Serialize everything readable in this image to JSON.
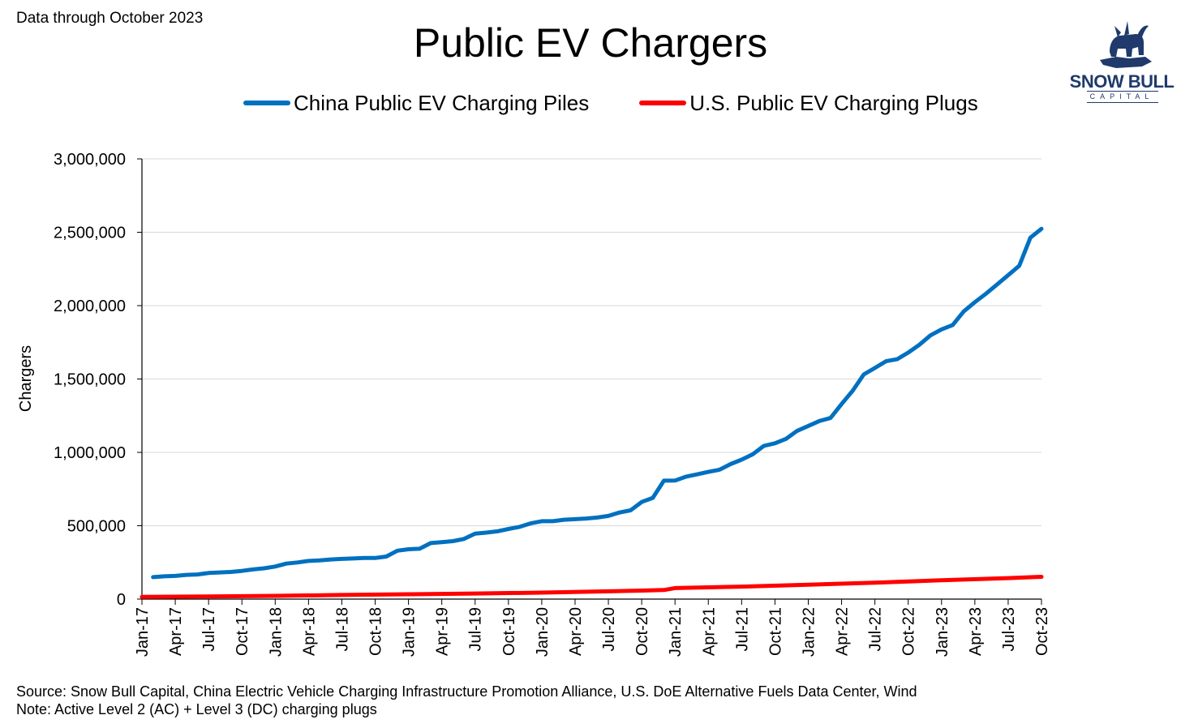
{
  "header": {
    "data_note": "Data through October 2023",
    "title": "Public EV Chargers"
  },
  "logo": {
    "name": "SNOW BULL",
    "subtitle": "CAPITAL",
    "icon": "bull-icon",
    "color": "#1f3a6b"
  },
  "footer": {
    "source": "Source: Snow Bull Capital, China Electric Vehicle Charging Infrastructure Promotion Alliance, U.S. DoE Alternative Fuels Data Center, Wind",
    "note": "Note: Active Level 2 (AC) + Level 3 (DC) charging plugs"
  },
  "chart_data": {
    "type": "line",
    "title": "Public EV Chargers",
    "ylabel": "Chargers",
    "xlabel": "",
    "ylim": [
      0,
      3000000
    ],
    "yticks": [
      0,
      500000,
      1000000,
      1500000,
      2000000,
      2500000,
      3000000
    ],
    "ytick_labels": [
      "0",
      "500,000",
      "1,000,000",
      "1,500,000",
      "2,000,000",
      "2,500,000",
      "3,000,000"
    ],
    "x_range": [
      "Jan-17",
      "Oct-23"
    ],
    "x_ticks": [
      "Jan-17",
      "Apr-17",
      "Jul-17",
      "Oct-17",
      "Jan-18",
      "Apr-18",
      "Jul-18",
      "Oct-18",
      "Jan-19",
      "Apr-19",
      "Jul-19",
      "Oct-19",
      "Jan-20",
      "Apr-20",
      "Jul-20",
      "Oct-20",
      "Jan-21",
      "Apr-21",
      "Jul-21",
      "Oct-21",
      "Jan-22",
      "Apr-22",
      "Jul-22",
      "Oct-22",
      "Jan-23",
      "Apr-23",
      "Jul-23",
      "Oct-23"
    ],
    "grid": "horizontal",
    "legend_position": "top",
    "series": [
      {
        "name": "China Public EV Charging Piles",
        "color": "#0070c0",
        "points": [
          [
            "Feb-17",
            150000
          ],
          [
            "Mar-17",
            155000
          ],
          [
            "Apr-17",
            158000
          ],
          [
            "May-17",
            165000
          ],
          [
            "Jun-17",
            168000
          ],
          [
            "Jul-17",
            178000
          ],
          [
            "Aug-17",
            182000
          ],
          [
            "Sep-17",
            185000
          ],
          [
            "Oct-17",
            192000
          ],
          [
            "Nov-17",
            202000
          ],
          [
            "Dec-17",
            210000
          ],
          [
            "Jan-18",
            222000
          ],
          [
            "Feb-18",
            242000
          ],
          [
            "Mar-18",
            250000
          ],
          [
            "Apr-18",
            260000
          ],
          [
            "May-18",
            264000
          ],
          [
            "Jun-18",
            270000
          ],
          [
            "Jul-18",
            274000
          ],
          [
            "Aug-18",
            277000
          ],
          [
            "Sep-18",
            280000
          ],
          [
            "Oct-18",
            280000
          ],
          [
            "Nov-18",
            290000
          ],
          [
            "Dec-18",
            330000
          ],
          [
            "Jan-19",
            340000
          ],
          [
            "Feb-19",
            343000
          ],
          [
            "Mar-19",
            382000
          ],
          [
            "Apr-19",
            388000
          ],
          [
            "May-19",
            395000
          ],
          [
            "Jun-19",
            410000
          ],
          [
            "Jul-19",
            446000
          ],
          [
            "Aug-19",
            453000
          ],
          [
            "Sep-19",
            462000
          ],
          [
            "Oct-19",
            478000
          ],
          [
            "Nov-19",
            492000
          ],
          [
            "Dec-19",
            516000
          ],
          [
            "Jan-20",
            531000
          ],
          [
            "Feb-20",
            531000
          ],
          [
            "Mar-20",
            541000
          ],
          [
            "Apr-20",
            545000
          ],
          [
            "May-20",
            549000
          ],
          [
            "Jun-20",
            556000
          ],
          [
            "Jul-20",
            567000
          ],
          [
            "Aug-20",
            590000
          ],
          [
            "Sep-20",
            605000
          ],
          [
            "Oct-20",
            662000
          ],
          [
            "Nov-20",
            690000
          ],
          [
            "Dec-20",
            807000
          ],
          [
            "Jan-21",
            808000
          ],
          [
            "Feb-21",
            835000
          ],
          [
            "Mar-21",
            850000
          ],
          [
            "Apr-21",
            867000
          ],
          [
            "May-21",
            882000
          ],
          [
            "Jun-21",
            920000
          ],
          [
            "Jul-21",
            950000
          ],
          [
            "Aug-21",
            987000
          ],
          [
            "Sep-21",
            1044000
          ],
          [
            "Oct-21",
            1062000
          ],
          [
            "Nov-21",
            1092000
          ],
          [
            "Dec-21",
            1147000
          ],
          [
            "Jan-22",
            1180000
          ],
          [
            "Feb-22",
            1214000
          ],
          [
            "Mar-22",
            1234000
          ],
          [
            "Apr-22",
            1330000
          ],
          [
            "May-22",
            1420000
          ],
          [
            "Jun-22",
            1531000
          ],
          [
            "Jul-22",
            1575000
          ],
          [
            "Aug-22",
            1621000
          ],
          [
            "Sep-22",
            1635000
          ],
          [
            "Oct-22",
            1680000
          ],
          [
            "Nov-22",
            1733000
          ],
          [
            "Dec-22",
            1797000
          ],
          [
            "Jan-23",
            1838000
          ],
          [
            "Feb-23",
            1868000
          ],
          [
            "Mar-23",
            1961000
          ],
          [
            "Apr-23",
            2024000
          ],
          [
            "May-23",
            2081000
          ],
          [
            "Jun-23",
            2144000
          ],
          [
            "Jul-23",
            2208000
          ],
          [
            "Aug-23",
            2272000
          ],
          [
            "Sep-23",
            2463000
          ],
          [
            "Oct-23",
            2524000
          ]
        ]
      },
      {
        "name": "U.S. Public EV Charging Plugs",
        "color": "#ff0000",
        "points": [
          [
            "Jan-17",
            15000
          ],
          [
            "Jul-17",
            18000
          ],
          [
            "Jan-18",
            22000
          ],
          [
            "Jul-18",
            28000
          ],
          [
            "Jan-19",
            33000
          ],
          [
            "Jul-19",
            38000
          ],
          [
            "Jan-20",
            44000
          ],
          [
            "Jul-20",
            53000
          ],
          [
            "Oct-20",
            58000
          ],
          [
            "Dec-20",
            62000
          ],
          [
            "Jan-21",
            75000
          ],
          [
            "Jul-21",
            85000
          ],
          [
            "Jan-22",
            98000
          ],
          [
            "Jul-22",
            112000
          ],
          [
            "Jan-23",
            128000
          ],
          [
            "Jul-23",
            143000
          ],
          [
            "Oct-23",
            152000
          ]
        ]
      }
    ]
  }
}
